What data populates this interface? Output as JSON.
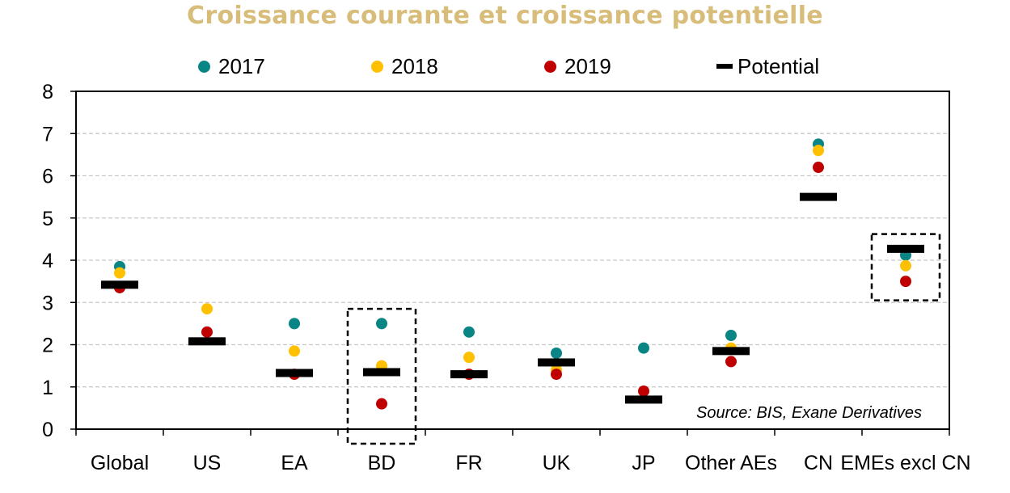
{
  "chart_data": {
    "type": "scatter",
    "title": "Croissance courante et croissance potentielle",
    "categories": [
      "Global",
      "US",
      "EA",
      "BD",
      "FR",
      "UK",
      "JP",
      "Other AEs",
      "CN",
      "EMEs excl CN"
    ],
    "series": [
      {
        "name": "2017",
        "color": "#0a8585",
        "values": [
          3.85,
          null,
          2.5,
          2.5,
          2.3,
          1.8,
          1.92,
          2.22,
          6.75,
          4.12
        ]
      },
      {
        "name": "2018",
        "color": "#ffc000",
        "values": [
          3.7,
          2.85,
          1.85,
          1.5,
          1.7,
          1.4,
          null,
          1.92,
          6.6,
          3.87
        ]
      },
      {
        "name": "2019",
        "color": "#c00000",
        "values": [
          3.35,
          2.3,
          1.3,
          0.6,
          1.3,
          1.3,
          0.9,
          1.6,
          6.2,
          3.5
        ]
      },
      {
        "name": "Potential",
        "color": "#000000",
        "marker": "dash",
        "values": [
          3.42,
          2.08,
          1.33,
          1.35,
          1.3,
          1.58,
          0.7,
          1.85,
          5.5,
          4.27
        ]
      }
    ],
    "ylim": [
      0,
      8
    ],
    "yticks": [
      0,
      1,
      2,
      3,
      4,
      5,
      6,
      7,
      8
    ],
    "grid": "horizontal dashed",
    "legend": "top",
    "highlighted_categories": [
      "BD",
      "EMEs excl CN"
    ],
    "annotation": "Source: BIS, Exane Derivatives"
  }
}
